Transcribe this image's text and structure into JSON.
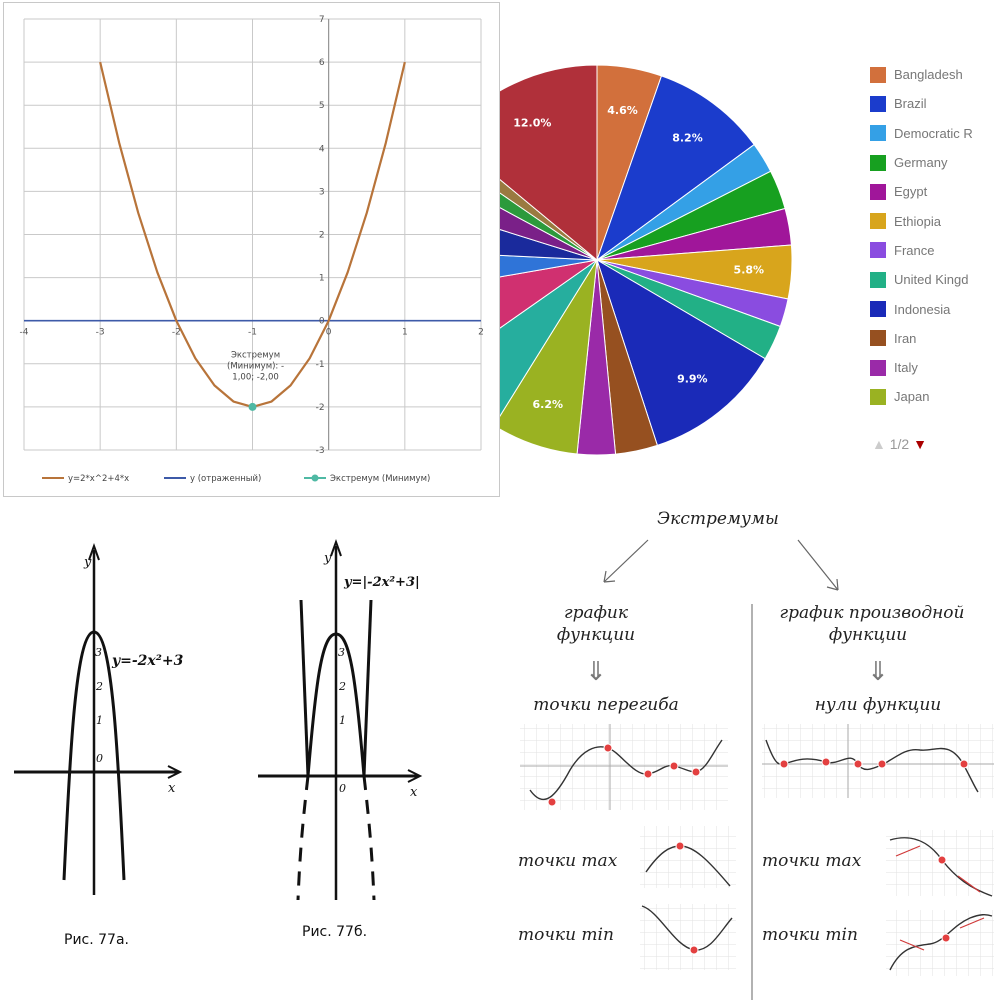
{
  "chart_data": [
    {
      "type": "line",
      "xlim": [
        -4,
        2
      ],
      "ylim": [
        -3,
        7
      ],
      "x_ticks": [
        "-4",
        "-3",
        "-2",
        "-1",
        "0",
        "1",
        "2"
      ],
      "y_ticks": [
        "-3",
        "-2",
        "-1",
        "0",
        "1",
        "2",
        "3",
        "4",
        "5",
        "6",
        "7"
      ],
      "grid": true,
      "series": [
        {
          "name": "y=2*x^2+4*x",
          "color": "#b8743a",
          "x": [
            -3,
            -2.75,
            -2.5,
            -2.25,
            -2,
            -1.75,
            -1.5,
            -1.25,
            -1,
            -0.75,
            -0.5,
            -0.25,
            0,
            0.25,
            0.5,
            0.75,
            1
          ],
          "y": [
            6,
            4.125,
            2.5,
            1.125,
            0,
            -0.875,
            -1.5,
            -1.875,
            -2,
            -1.875,
            -1.5,
            -0.875,
            0,
            1.125,
            2.5,
            4.125,
            6
          ]
        },
        {
          "name": "y (отраженный)",
          "color": "#3d5aa8"
        },
        {
          "name": "Экстремум (Минимум)",
          "color": "#4fb9a4",
          "x": [
            -1
          ],
          "y": [
            -2
          ]
        }
      ],
      "annotation": {
        "lines": [
          "Экстремум",
          "(Минимум): -",
          "1,00; -2,00"
        ]
      },
      "legend_placement": "bottom"
    },
    {
      "type": "pie",
      "slices": [
        {
          "label": "Bangladesh",
          "value": 4.6,
          "color": "#d2703c"
        },
        {
          "label": "Brazil",
          "value": 8.2,
          "color": "#1b3ccc"
        },
        {
          "label": "Democratic R",
          "value": 2.2,
          "color": "#34a0e6"
        },
        {
          "label": "Germany",
          "value": 2.8,
          "color": "#17a020"
        },
        {
          "label": "Egypt",
          "value": 2.6,
          "color": "#a0169a"
        },
        {
          "label": "Ethiopia",
          "value": 3.8,
          "color": "#d8a51c"
        },
        {
          "label": "France",
          "value": 2.0,
          "color": "#8a4ce0"
        },
        {
          "label": "United Kingd",
          "value": 2.5,
          "color": "#22b086"
        },
        {
          "label": "Indonesia",
          "value": 9.9,
          "color": "#1a2ab8"
        },
        {
          "label": "Iran",
          "value": 3.0,
          "color": "#965020"
        },
        {
          "label": "Italy",
          "value": 2.7,
          "color": "#9a2aa8"
        },
        {
          "label": "Japan",
          "value": 6.2,
          "color": "#9ab222"
        },
        {
          "label": "",
          "value": 5.5,
          "color": "#26ae9e"
        },
        {
          "label": "",
          "value": 6.0,
          "color": "#d03070"
        },
        {
          "label": "",
          "value": 3.0,
          "color": "#2f74d8"
        },
        {
          "label": "",
          "value": 3.5,
          "color": "#1a2a9c"
        },
        {
          "label": "",
          "value": 2.6,
          "color": "#7a2088"
        },
        {
          "label": "",
          "value": 1.5,
          "color": "#2c9a3c"
        },
        {
          "label": "",
          "value": 1.2,
          "color": "#9a7a40"
        },
        {
          "label": "",
          "value": 12.0,
          "color": "#b0303a"
        }
      ],
      "data_labels": [
        "4.6%",
        "8.2%",
        "5.8%",
        "9.9%",
        "6.2%",
        "12.0%"
      ],
      "legend_pager": {
        "text": "1/2",
        "up": "▲",
        "down": "▼"
      },
      "legend_placement": "right"
    }
  ],
  "figures": {
    "fig_a": {
      "axis_y": "y",
      "axis_x": "x",
      "equation": "y=-2x²+3",
      "ticks": [
        "3",
        "2",
        "1",
        "0"
      ],
      "caption": "Рис. 77а."
    },
    "fig_b": {
      "axis_y": "y",
      "axis_x": "x",
      "equation": "y=|-2x²+3|",
      "ticks": [
        "3",
        "2",
        "1",
        "0"
      ],
      "caption": "Рис. 77б."
    }
  },
  "diagram": {
    "title": "Экстремумы",
    "left_branch": {
      "line1": "график",
      "line2": "функции",
      "result": "точки перегиба",
      "max_label": "точки max",
      "min_label": "точки min"
    },
    "right_branch": {
      "line1": "график производной",
      "line2": "функции",
      "result": "нули функции",
      "max_label": "точки max",
      "min_label": "точки min"
    },
    "implies_symbol": "⇓"
  }
}
